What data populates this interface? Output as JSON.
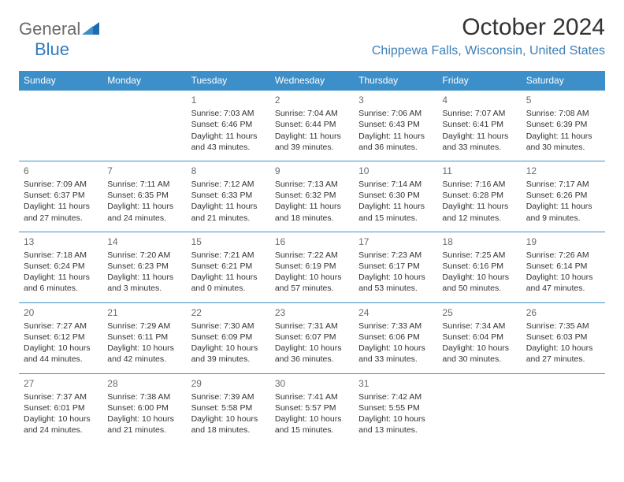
{
  "logo": {
    "text1": "General",
    "text2": "Blue"
  },
  "title": "October 2024",
  "location": "Chippewa Falls, Wisconsin, United States",
  "colors": {
    "header_bg": "#3d8fc9",
    "header_text": "#ffffff",
    "location_text": "#3d7fb8",
    "border": "#3d8fc9",
    "body_text": "#333333",
    "daynum": "#6b6b6b",
    "logo_gray": "#6b6b6b",
    "logo_blue": "#2f7bbf",
    "background": "#ffffff"
  },
  "daynames": [
    "Sunday",
    "Monday",
    "Tuesday",
    "Wednesday",
    "Thursday",
    "Friday",
    "Saturday"
  ],
  "weeks": [
    [
      null,
      null,
      {
        "n": "1",
        "sr": "Sunrise: 7:03 AM",
        "ss": "Sunset: 6:46 PM",
        "dl": "Daylight: 11 hours and 43 minutes."
      },
      {
        "n": "2",
        "sr": "Sunrise: 7:04 AM",
        "ss": "Sunset: 6:44 PM",
        "dl": "Daylight: 11 hours and 39 minutes."
      },
      {
        "n": "3",
        "sr": "Sunrise: 7:06 AM",
        "ss": "Sunset: 6:43 PM",
        "dl": "Daylight: 11 hours and 36 minutes."
      },
      {
        "n": "4",
        "sr": "Sunrise: 7:07 AM",
        "ss": "Sunset: 6:41 PM",
        "dl": "Daylight: 11 hours and 33 minutes."
      },
      {
        "n": "5",
        "sr": "Sunrise: 7:08 AM",
        "ss": "Sunset: 6:39 PM",
        "dl": "Daylight: 11 hours and 30 minutes."
      }
    ],
    [
      {
        "n": "6",
        "sr": "Sunrise: 7:09 AM",
        "ss": "Sunset: 6:37 PM",
        "dl": "Daylight: 11 hours and 27 minutes."
      },
      {
        "n": "7",
        "sr": "Sunrise: 7:11 AM",
        "ss": "Sunset: 6:35 PM",
        "dl": "Daylight: 11 hours and 24 minutes."
      },
      {
        "n": "8",
        "sr": "Sunrise: 7:12 AM",
        "ss": "Sunset: 6:33 PM",
        "dl": "Daylight: 11 hours and 21 minutes."
      },
      {
        "n": "9",
        "sr": "Sunrise: 7:13 AM",
        "ss": "Sunset: 6:32 PM",
        "dl": "Daylight: 11 hours and 18 minutes."
      },
      {
        "n": "10",
        "sr": "Sunrise: 7:14 AM",
        "ss": "Sunset: 6:30 PM",
        "dl": "Daylight: 11 hours and 15 minutes."
      },
      {
        "n": "11",
        "sr": "Sunrise: 7:16 AM",
        "ss": "Sunset: 6:28 PM",
        "dl": "Daylight: 11 hours and 12 minutes."
      },
      {
        "n": "12",
        "sr": "Sunrise: 7:17 AM",
        "ss": "Sunset: 6:26 PM",
        "dl": "Daylight: 11 hours and 9 minutes."
      }
    ],
    [
      {
        "n": "13",
        "sr": "Sunrise: 7:18 AM",
        "ss": "Sunset: 6:24 PM",
        "dl": "Daylight: 11 hours and 6 minutes."
      },
      {
        "n": "14",
        "sr": "Sunrise: 7:20 AM",
        "ss": "Sunset: 6:23 PM",
        "dl": "Daylight: 11 hours and 3 minutes."
      },
      {
        "n": "15",
        "sr": "Sunrise: 7:21 AM",
        "ss": "Sunset: 6:21 PM",
        "dl": "Daylight: 11 hours and 0 minutes."
      },
      {
        "n": "16",
        "sr": "Sunrise: 7:22 AM",
        "ss": "Sunset: 6:19 PM",
        "dl": "Daylight: 10 hours and 57 minutes."
      },
      {
        "n": "17",
        "sr": "Sunrise: 7:23 AM",
        "ss": "Sunset: 6:17 PM",
        "dl": "Daylight: 10 hours and 53 minutes."
      },
      {
        "n": "18",
        "sr": "Sunrise: 7:25 AM",
        "ss": "Sunset: 6:16 PM",
        "dl": "Daylight: 10 hours and 50 minutes."
      },
      {
        "n": "19",
        "sr": "Sunrise: 7:26 AM",
        "ss": "Sunset: 6:14 PM",
        "dl": "Daylight: 10 hours and 47 minutes."
      }
    ],
    [
      {
        "n": "20",
        "sr": "Sunrise: 7:27 AM",
        "ss": "Sunset: 6:12 PM",
        "dl": "Daylight: 10 hours and 44 minutes."
      },
      {
        "n": "21",
        "sr": "Sunrise: 7:29 AM",
        "ss": "Sunset: 6:11 PM",
        "dl": "Daylight: 10 hours and 42 minutes."
      },
      {
        "n": "22",
        "sr": "Sunrise: 7:30 AM",
        "ss": "Sunset: 6:09 PM",
        "dl": "Daylight: 10 hours and 39 minutes."
      },
      {
        "n": "23",
        "sr": "Sunrise: 7:31 AM",
        "ss": "Sunset: 6:07 PM",
        "dl": "Daylight: 10 hours and 36 minutes."
      },
      {
        "n": "24",
        "sr": "Sunrise: 7:33 AM",
        "ss": "Sunset: 6:06 PM",
        "dl": "Daylight: 10 hours and 33 minutes."
      },
      {
        "n": "25",
        "sr": "Sunrise: 7:34 AM",
        "ss": "Sunset: 6:04 PM",
        "dl": "Daylight: 10 hours and 30 minutes."
      },
      {
        "n": "26",
        "sr": "Sunrise: 7:35 AM",
        "ss": "Sunset: 6:03 PM",
        "dl": "Daylight: 10 hours and 27 minutes."
      }
    ],
    [
      {
        "n": "27",
        "sr": "Sunrise: 7:37 AM",
        "ss": "Sunset: 6:01 PM",
        "dl": "Daylight: 10 hours and 24 minutes."
      },
      {
        "n": "28",
        "sr": "Sunrise: 7:38 AM",
        "ss": "Sunset: 6:00 PM",
        "dl": "Daylight: 10 hours and 21 minutes."
      },
      {
        "n": "29",
        "sr": "Sunrise: 7:39 AM",
        "ss": "Sunset: 5:58 PM",
        "dl": "Daylight: 10 hours and 18 minutes."
      },
      {
        "n": "30",
        "sr": "Sunrise: 7:41 AM",
        "ss": "Sunset: 5:57 PM",
        "dl": "Daylight: 10 hours and 15 minutes."
      },
      {
        "n": "31",
        "sr": "Sunrise: 7:42 AM",
        "ss": "Sunset: 5:55 PM",
        "dl": "Daylight: 10 hours and 13 minutes."
      },
      null,
      null
    ]
  ]
}
